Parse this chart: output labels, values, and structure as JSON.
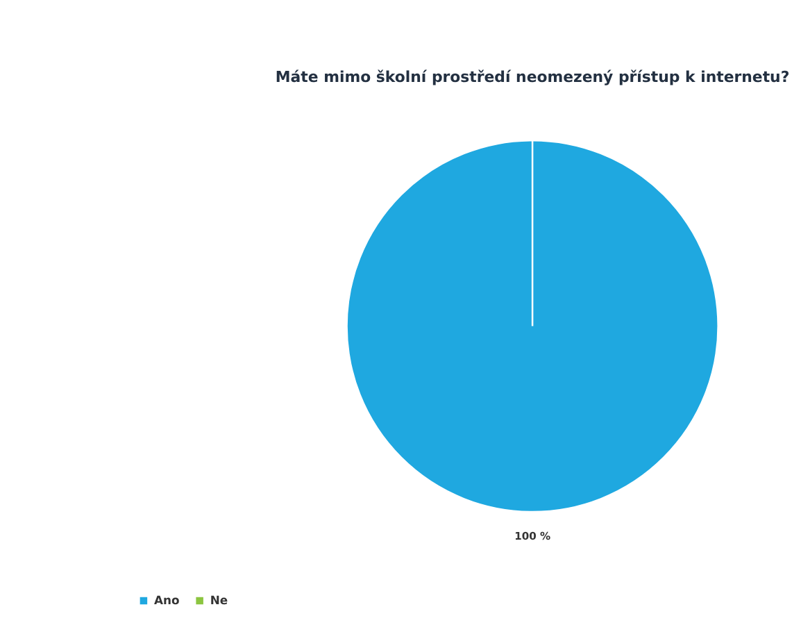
{
  "chart_data": {
    "type": "pie",
    "title": "Máte mimo školní prostředí neomezený přístup k internetu?",
    "categories": [
      "Ano",
      "Ne"
    ],
    "values": [
      100,
      0
    ],
    "colors": [
      "#1fa8e0",
      "#8cc540"
    ],
    "value_labels": [
      "100 %",
      null
    ],
    "legend": "bottom left"
  }
}
